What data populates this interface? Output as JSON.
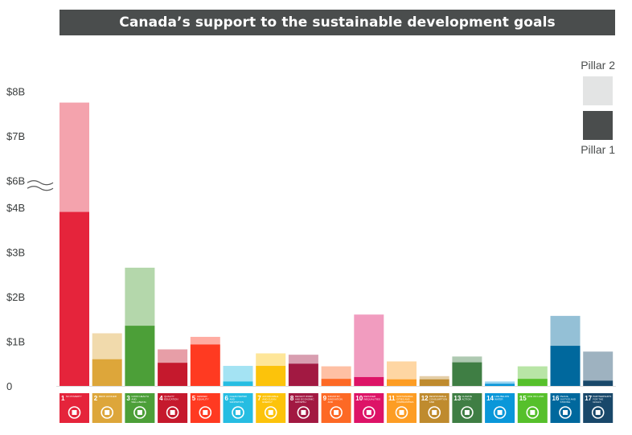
{
  "title": "Canada’s support to the sustainable development goals",
  "legend": {
    "pillar2": "Pillar 2",
    "pillar1": "Pillar 1"
  },
  "colors": {
    "pillar2_legend": "#e3e4e4",
    "pillar1_legend": "#4a4d4d",
    "title_bg": "#4a4d4d"
  },
  "chart_data": {
    "type": "bar",
    "stacked": true,
    "axis_break": [
      4.5,
      5.9
    ],
    "ylim": [
      0,
      8
    ],
    "yticks": [
      {
        "value": 0,
        "label": "0"
      },
      {
        "value": 1,
        "label": "$1B"
      },
      {
        "value": 2,
        "label": "$2B"
      },
      {
        "value": 3,
        "label": "$3B"
      },
      {
        "value": 4,
        "label": "$4B"
      },
      {
        "value": 6,
        "label": "$6B"
      },
      {
        "value": 7,
        "label": "$7B"
      },
      {
        "value": 8,
        "label": "$8B"
      }
    ],
    "categories": [
      "1",
      "2",
      "3",
      "4",
      "5",
      "6",
      "7",
      "8",
      "9",
      "10",
      "11",
      "12",
      "13",
      "14",
      "15",
      "16",
      "17"
    ],
    "series": [
      {
        "name": "Pillar 1",
        "values": [
          3.9,
          0.6,
          1.35,
          0.52,
          0.93,
          0.1,
          0.45,
          0.5,
          0.16,
          0.2,
          0.15,
          0.15,
          0.53,
          0.05,
          0.16,
          0.9,
          0.12
        ]
      },
      {
        "name": "Pillar 2",
        "values": [
          3.85,
          0.58,
          1.3,
          0.3,
          0.17,
          0.35,
          0.28,
          0.2,
          0.28,
          1.4,
          0.4,
          0.07,
          0.13,
          0.05,
          0.28,
          0.67,
          0.65
        ]
      }
    ],
    "goal_colors": [
      "#e5243b",
      "#dda63a",
      "#4c9f38",
      "#c5192d",
      "#ff3a21",
      "#26bde2",
      "#fcc30b",
      "#a21942",
      "#fd6925",
      "#dd1367",
      "#fd9d24",
      "#bf8b2e",
      "#3f7e44",
      "#0a97d9",
      "#56c02b",
      "#00689d",
      "#19486a"
    ],
    "goal_tile_labels": [
      "NO POVERTY",
      "ZERO HUNGER",
      "GOOD HEALTH AND WELL-BEING",
      "QUALITY EDUCATION",
      "GENDER EQUALITY",
      "CLEAN WATER AND SANITATION",
      "AFFORDABLE AND CLEAN ENERGY",
      "DECENT WORK AND ECONOMIC GROWTH",
      "INDUSTRY, INNOVATION AND INFRASTRUCTURE",
      "REDUCED INEQUALITIES",
      "SUSTAINABLE CITIES AND COMMUNITIES",
      "RESPONSIBLE CONSUMPTION AND PRODUCTION",
      "CLIMATE ACTION",
      "LIFE BELOW WATER",
      "LIFE ON LAND",
      "PEACE, JUSTICE AND STRONG INSTITUTIONS",
      "PARTNERSHIPS FOR THE GOALS"
    ]
  }
}
